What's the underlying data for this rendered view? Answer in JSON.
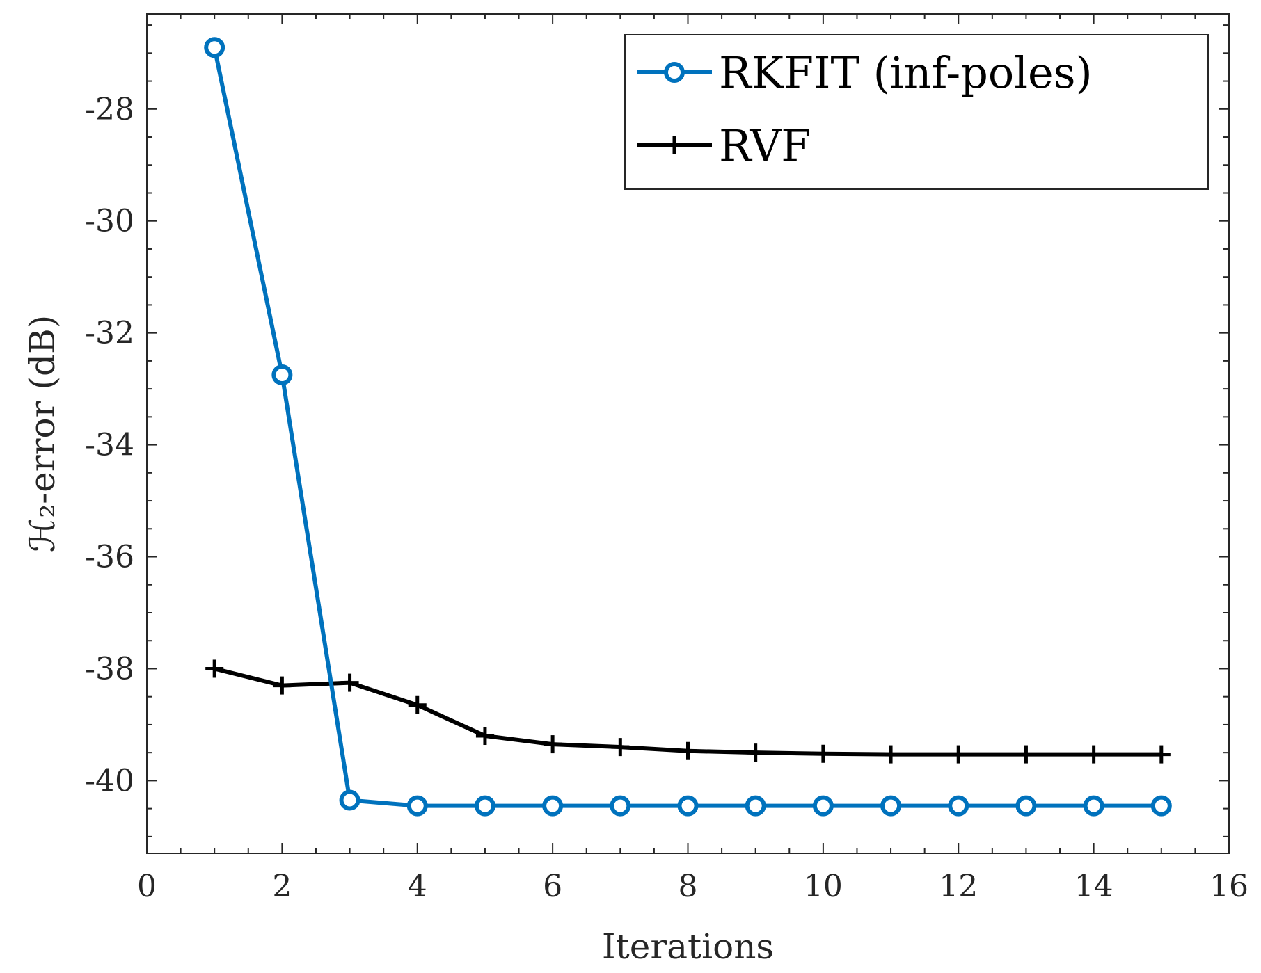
{
  "chart_data": {
    "type": "line",
    "xlabel": "Iterations",
    "ylabel": "ℋ₂-error (dB)",
    "xlim": [
      0,
      16
    ],
    "ylim": [
      -41.3,
      -26.3
    ],
    "xticks": [
      0,
      2,
      4,
      6,
      8,
      10,
      12,
      14,
      16
    ],
    "yticks": [
      -40,
      -38,
      -36,
      -34,
      -32,
      -30,
      -28
    ],
    "grid": false,
    "legend_position": "top-right",
    "series": [
      {
        "name": "RKFIT (inf-poles)",
        "color": "#0072BD",
        "marker": "circle",
        "x": [
          1,
          2,
          3,
          4,
          5,
          6,
          7,
          8,
          9,
          10,
          11,
          12,
          13,
          14,
          15
        ],
        "y": [
          -26.9,
          -32.75,
          -40.35,
          -40.45,
          -40.45,
          -40.45,
          -40.45,
          -40.45,
          -40.45,
          -40.45,
          -40.45,
          -40.45,
          -40.45,
          -40.45,
          -40.45
        ]
      },
      {
        "name": "RVF",
        "color": "#000000",
        "marker": "plus",
        "x": [
          1,
          2,
          3,
          4,
          5,
          6,
          7,
          8,
          9,
          10,
          11,
          12,
          13,
          14,
          15
        ],
        "y": [
          -38.0,
          -38.3,
          -38.25,
          -38.65,
          -39.2,
          -39.35,
          -39.4,
          -39.47,
          -39.5,
          -39.52,
          -39.53,
          -39.53,
          -39.53,
          -39.53,
          -39.53
        ]
      }
    ]
  }
}
